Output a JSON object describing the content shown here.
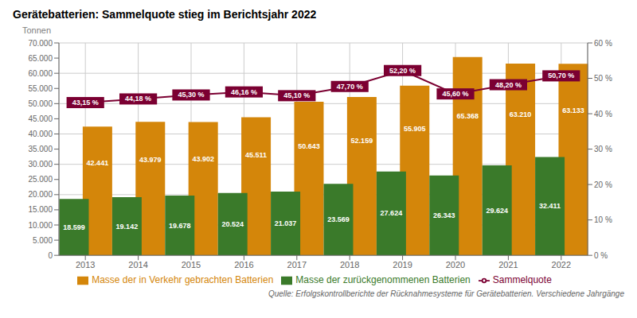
{
  "chart_data": {
    "type": "bar",
    "title": "Gerätebatterien: Sammelquote stieg im Berichtsjahr 2022",
    "ylabel": "Tonnen",
    "annotations": [
      "Quelle: Erfolgskontrollberichte der Rücknahmesysteme für Gerätebatterien. Verschiedene Jahrgänge"
    ],
    "categories": [
      "2013",
      "2014",
      "2015",
      "2016",
      "2017",
      "2018",
      "2019",
      "2020",
      "2021",
      "2022"
    ],
    "series": [
      {
        "name": "Masse der in Verkehr gebrachten Batterien",
        "type": "bar",
        "color": "#D4860A",
        "values": [
          42441,
          43979,
          43902,
          45511,
          50643,
          52159,
          55905,
          65368,
          63210,
          63133
        ],
        "value_labels": [
          "42.441",
          "43.979",
          "43.902",
          "45.511",
          "50.643",
          "52.159",
          "55.905",
          "65.368",
          "63.210",
          "63.133"
        ]
      },
      {
        "name": "Masse der zurückgenommenen Batterien",
        "type": "bar",
        "color": "#3A7A2A",
        "values": [
          18599,
          19142,
          19678,
          20524,
          21037,
          23569,
          27624,
          26343,
          29624,
          32411
        ],
        "value_labels": [
          "18.599",
          "19.142",
          "19.678",
          "20.524",
          "21.037",
          "23.569",
          "27.624",
          "26.343",
          "29.624",
          "32.411"
        ]
      },
      {
        "name": "Sammelquote",
        "type": "line",
        "axis": "y2",
        "color": "#7B0032",
        "marker": "square",
        "values": [
          43.15,
          44.18,
          45.3,
          46.16,
          45.1,
          47.7,
          52.2,
          45.6,
          48.2,
          50.7
        ],
        "value_labels": [
          "43,15 %",
          "44,18 %",
          "45,30 %",
          "46,16 %",
          "45,10 %",
          "47,70 %",
          "52,20 %",
          "45,60 %",
          "48,20 %",
          "50,70 %"
        ]
      }
    ],
    "ylim": [
      0,
      70000
    ],
    "yticks": [
      0,
      {
        "value": 5000,
        "label": "5.000"
      },
      {
        "value": 10000,
        "label": "10.000"
      },
      {
        "value": 15000,
        "label": "15.000"
      },
      {
        "value": 20000,
        "label": "20.000"
      },
      {
        "value": 25000,
        "label": "25.000"
      },
      {
        "value": 30000,
        "label": "30.000"
      },
      {
        "value": 35000,
        "label": "35.000"
      },
      {
        "value": 40000,
        "label": "40.000"
      },
      {
        "value": 45000,
        "label": "45.000"
      },
      {
        "value": 50000,
        "label": "50.000"
      },
      {
        "value": 55000,
        "label": "55.000"
      },
      {
        "value": 60000,
        "label": "60.000"
      },
      {
        "value": 65000,
        "label": "65.000"
      },
      {
        "value": 70000,
        "label": "70.000"
      }
    ],
    "y2lim": [
      0,
      60
    ],
    "y2ticks": [
      {
        "value": 0,
        "label": "0 %"
      },
      {
        "value": 10,
        "label": "10 %"
      },
      {
        "value": 20,
        "label": "20 %"
      },
      {
        "value": 30,
        "label": "30 %"
      },
      {
        "value": 40,
        "label": "40 %"
      },
      {
        "value": 50,
        "label": "50 %"
      },
      {
        "value": 60,
        "label": "60 %"
      }
    ],
    "grid": true,
    "legend": "bottom",
    "data_labels": true
  }
}
